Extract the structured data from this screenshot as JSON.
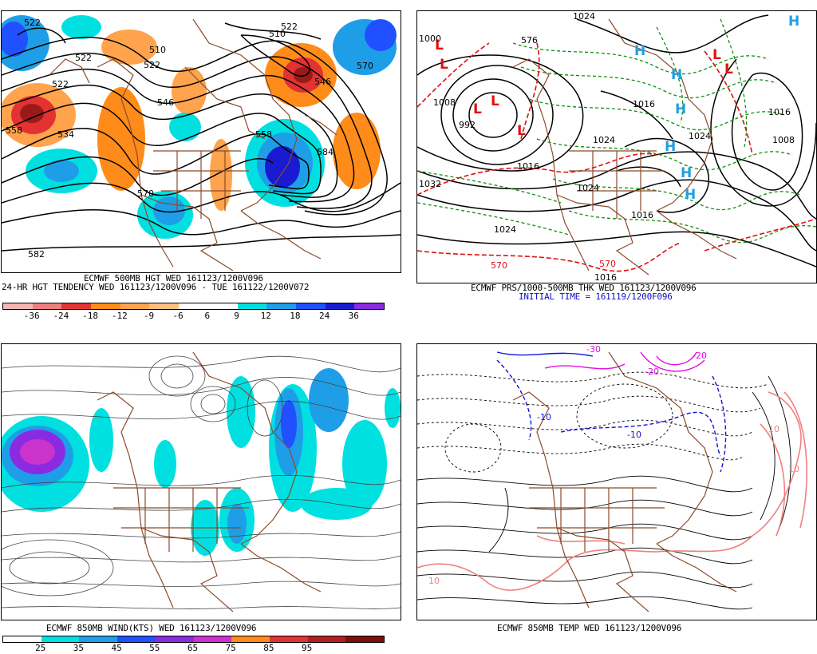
{
  "panels": {
    "hgt500": {
      "title": "ECMWF 500MB HGT WED 161123/1200V096",
      "subtitle": "24-HR HGT TENDENCY WED 161123/1200V096 - TUE 161122/1200V072",
      "contour_labels": [
        "522",
        "522",
        "510",
        "522",
        "546",
        "522",
        "522",
        "558",
        "534",
        "546",
        "510",
        "570",
        "558",
        "584",
        "570",
        "582"
      ],
      "colorbar_colors": [
        "#f5b5b5",
        "#ee7f7f",
        "#e23232",
        "#ff8c1a",
        "#ffa34d",
        "#ffc080",
        "#ffffff",
        "#ffffff",
        "#00e0e0",
        "#1f9ee8",
        "#2050ff",
        "#1a1ad0",
        "#8a2be2"
      ],
      "colorbar_ticks": [
        "-36",
        "-24",
        "-18",
        "-12",
        "-9",
        "-6",
        "6",
        "9",
        "12",
        "18",
        "24",
        "36"
      ]
    },
    "prs": {
      "title": "ECMWF PRS/1000-500MB THK WED 161123/1200V096",
      "subtitle": "INITIAL TIME = 161119/1200F096",
      "isobar_labels": [
        "1024",
        "1000",
        "1008",
        "992",
        "1016",
        "1024",
        "1024",
        "1024",
        "1016",
        "1032",
        "1024",
        "1016",
        "1008",
        "1016",
        "1016"
      ],
      "thickness_labels": [
        "576",
        "570",
        "570"
      ],
      "low_letter": "L",
      "high_letter": "H"
    },
    "wind850": {
      "title": "ECMWF 850MB WIND(KTS) WED 161123/1200V096",
      "colorbar_colors": [
        "#ffffff",
        "#00e0e0",
        "#1f9ee8",
        "#2050ff",
        "#8a2be2",
        "#cc33cc",
        "#ff8c1a",
        "#e23232",
        "#b02020",
        "#7a1010"
      ],
      "colorbar_ticks": [
        "25",
        "35",
        "45",
        "55",
        "65",
        "75",
        "85",
        "95"
      ]
    },
    "temp850": {
      "title": "ECMWF 850MB TEMP WED 161123/1200V096",
      "temp_labels": [
        "-30",
        "-20",
        "-20",
        "-10",
        "-10",
        "10",
        "10",
        "10"
      ]
    }
  },
  "colors": {
    "coastline": "#8b4a2b",
    "isobar": "#000000",
    "thickness_warm": "#e01010",
    "thickness_cold": "#109010",
    "high": "#20a0e0",
    "low": "#e01010",
    "cold_contour": "#1010e0",
    "very_cold_contour": "#e010e0",
    "warm_contour": "#f08080"
  }
}
